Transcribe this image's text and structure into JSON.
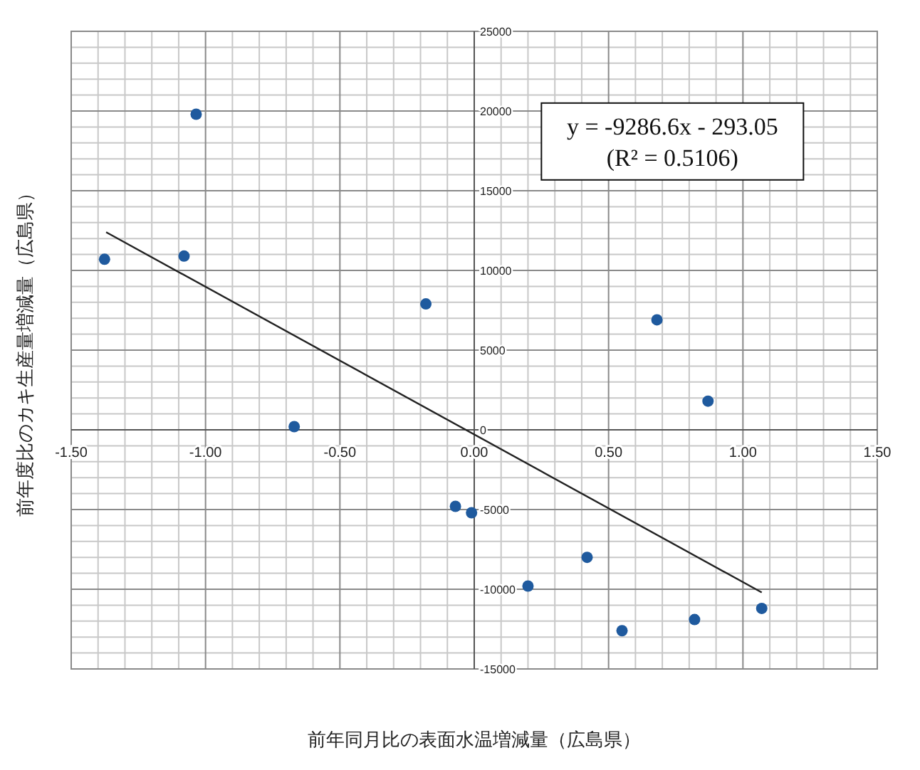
{
  "chart_data": {
    "type": "scatter",
    "xlabel": "前年同月比の表面水温増減量（広島県）",
    "ylabel": "前年度比のカキ生産量増減量（広島県）",
    "annotations": [
      "y = -9286.6x - 293.05",
      "(R² = 0.5106)"
    ],
    "xlim": [
      -1.5,
      1.5
    ],
    "ylim": [
      -15000,
      25000
    ],
    "xticks": [
      {
        "value": -1.5,
        "label": "-1.50"
      },
      {
        "value": -1,
        "label": "-1.00"
      },
      {
        "value": -0.5,
        "label": "-0.50"
      },
      {
        "value": 0,
        "label": "0.00"
      },
      {
        "value": 0.5,
        "label": "0.50"
      },
      {
        "value": 1,
        "label": "1.00"
      },
      {
        "value": 1.5,
        "label": "1.50"
      }
    ],
    "yticks": [
      -15000,
      -10000,
      -5000,
      0,
      5000,
      10000,
      15000,
      20000,
      25000
    ],
    "grid": true,
    "series": [
      {
        "marker": "circle",
        "color": "#1f5a9e",
        "x": [
          -1.376,
          -1.08,
          -1.035,
          -0.67,
          -0.18,
          0.68,
          0.87,
          -0.07,
          -0.01,
          0.2,
          0.42,
          0.55,
          0.82,
          1.07
        ],
        "values": [
          10700,
          10900,
          19800,
          200,
          7900,
          6900,
          1800,
          -4800,
          -5200,
          -9800,
          -8000,
          -12600,
          -11900,
          -11200
        ]
      },
      {
        "type": "line",
        "color": "#222222",
        "x": [
          -1.37,
          1.07
        ],
        "values": [
          12400,
          -10200
        ]
      }
    ]
  }
}
